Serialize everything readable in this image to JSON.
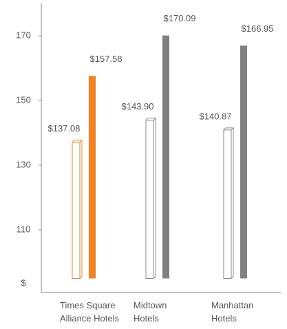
{
  "chart_data": {
    "type": "bar",
    "categories": [
      [
        "Times Square",
        "Alliance Hotels"
      ],
      [
        "Midtown",
        "Hotels"
      ],
      [
        "Manhattan",
        "Hotels"
      ]
    ],
    "y_label": "$",
    "series": [
      {
        "style": "outline",
        "colors": [
          "#f58220",
          "#888888",
          "#888888"
        ],
        "values": [
          137.08,
          143.9,
          140.87
        ],
        "value_labels": [
          "$137.08",
          "$143.90",
          "$140.87"
        ]
      },
      {
        "style": "solid",
        "colors": [
          "#f58220",
          "#808080",
          "#808080"
        ],
        "values": [
          157.58,
          170.09,
          166.95
        ],
        "value_labels": [
          "$157.58",
          "$170.09",
          "$166.95"
        ]
      }
    ],
    "ylim": [
      95,
      180
    ],
    "yticks": [
      110,
      130,
      150,
      170
    ],
    "grid": false
  }
}
